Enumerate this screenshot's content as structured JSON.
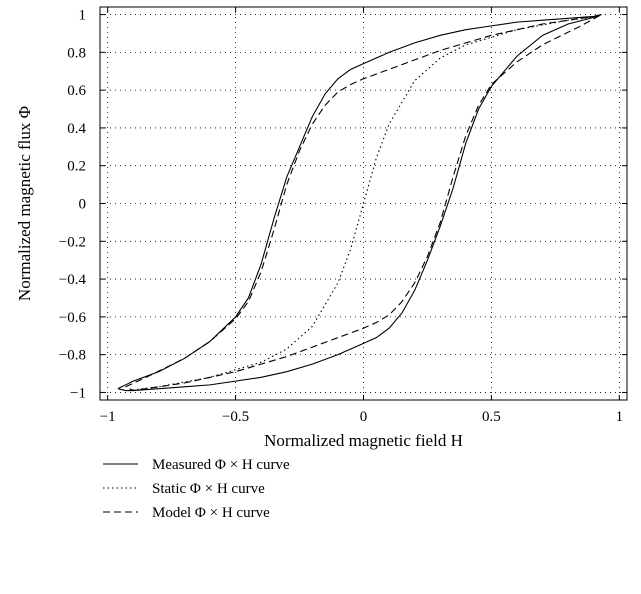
{
  "chart_data": {
    "type": "line",
    "xlabel": "Normalized magnetic field H",
    "ylabel": "Normalized magnetic flux Φ",
    "xlim": [
      -1.03,
      1.03
    ],
    "ylim": [
      -1.04,
      1.04
    ],
    "grid": true,
    "legend_position": "below",
    "x_ticks": [
      -1,
      -0.5,
      0,
      0.5,
      1
    ],
    "x_tick_labels": [
      "−1",
      "−0.5",
      "0",
      "0.5",
      "1"
    ],
    "y_ticks": [
      1,
      0.8,
      0.6,
      0.4,
      0.2,
      0,
      -0.2,
      -0.4,
      -0.6,
      -0.8,
      -1
    ],
    "y_tick_labels": [
      "1",
      "0.8",
      "0.6",
      "0.4",
      "0.2",
      "0",
      "−0.2",
      "−0.4",
      "−0.6",
      "−0.8",
      "−1"
    ],
    "series": [
      {
        "name": "Measured Φ × H curve",
        "style": "solid",
        "x": [
          -0.96,
          -0.9,
          -0.8,
          -0.7,
          -0.6,
          -0.5,
          -0.45,
          -0.4,
          -0.35,
          -0.3,
          -0.25,
          -0.2,
          -0.15,
          -0.1,
          -0.05,
          0,
          0.1,
          0.2,
          0.3,
          0.4,
          0.5,
          0.6,
          0.7,
          0.8,
          0.9,
          0.93,
          0.9,
          0.8,
          0.7,
          0.6,
          0.5,
          0.45,
          0.4,
          0.35,
          0.3,
          0.25,
          0.2,
          0.15,
          0.1,
          0.05,
          0,
          -0.1,
          -0.2,
          -0.3,
          -0.4,
          -0.5,
          -0.6,
          -0.7,
          -0.8,
          -0.9,
          -0.93,
          -0.96
        ],
        "y": [
          -0.98,
          -0.94,
          -0.89,
          -0.82,
          -0.73,
          -0.6,
          -0.5,
          -0.32,
          -0.08,
          0.14,
          0.3,
          0.46,
          0.58,
          0.66,
          0.71,
          0.74,
          0.8,
          0.85,
          0.89,
          0.92,
          0.94,
          0.96,
          0.97,
          0.98,
          0.99,
          1.0,
          0.985,
          0.95,
          0.89,
          0.78,
          0.62,
          0.5,
          0.32,
          0.08,
          -0.12,
          -0.3,
          -0.46,
          -0.58,
          -0.66,
          -0.71,
          -0.74,
          -0.8,
          -0.85,
          -0.89,
          -0.92,
          -0.94,
          -0.96,
          -0.97,
          -0.98,
          -0.99,
          -0.99,
          -0.98
        ]
      },
      {
        "name": "Static Φ × H curve",
        "style": "dotted",
        "x": [
          -0.92,
          -0.8,
          -0.6,
          -0.4,
          -0.3,
          -0.2,
          -0.1,
          -0.05,
          0,
          0.05,
          0.1,
          0.2,
          0.3,
          0.4,
          0.6,
          0.8,
          0.92
        ],
        "y": [
          -0.99,
          -0.97,
          -0.92,
          -0.84,
          -0.77,
          -0.65,
          -0.42,
          -0.24,
          0.0,
          0.24,
          0.42,
          0.65,
          0.77,
          0.84,
          0.92,
          0.97,
          0.99
        ]
      },
      {
        "name": "Model Φ × H curve",
        "style": "dashed",
        "x": [
          -0.93,
          -0.85,
          -0.7,
          -0.6,
          -0.5,
          -0.45,
          -0.4,
          -0.35,
          -0.3,
          -0.25,
          -0.2,
          -0.15,
          -0.1,
          -0.05,
          0,
          0.1,
          0.2,
          0.3,
          0.4,
          0.5,
          0.6,
          0.7,
          0.8,
          0.9,
          0.93,
          0.85,
          0.7,
          0.6,
          0.5,
          0.45,
          0.4,
          0.35,
          0.3,
          0.25,
          0.2,
          0.15,
          0.1,
          0.05,
          0,
          -0.1,
          -0.2,
          -0.3,
          -0.4,
          -0.5,
          -0.6,
          -0.7,
          -0.8,
          -0.9,
          -0.93
        ],
        "y": [
          -0.97,
          -0.92,
          -0.82,
          -0.73,
          -0.61,
          -0.52,
          -0.36,
          -0.14,
          0.1,
          0.28,
          0.42,
          0.52,
          0.59,
          0.63,
          0.66,
          0.71,
          0.76,
          0.81,
          0.85,
          0.89,
          0.92,
          0.95,
          0.97,
          0.99,
          1.0,
          0.94,
          0.84,
          0.75,
          0.63,
          0.52,
          0.36,
          0.14,
          -0.1,
          -0.28,
          -0.42,
          -0.52,
          -0.59,
          -0.63,
          -0.66,
          -0.71,
          -0.76,
          -0.81,
          -0.85,
          -0.89,
          -0.92,
          -0.95,
          -0.97,
          -0.99,
          -0.97
        ]
      }
    ]
  }
}
